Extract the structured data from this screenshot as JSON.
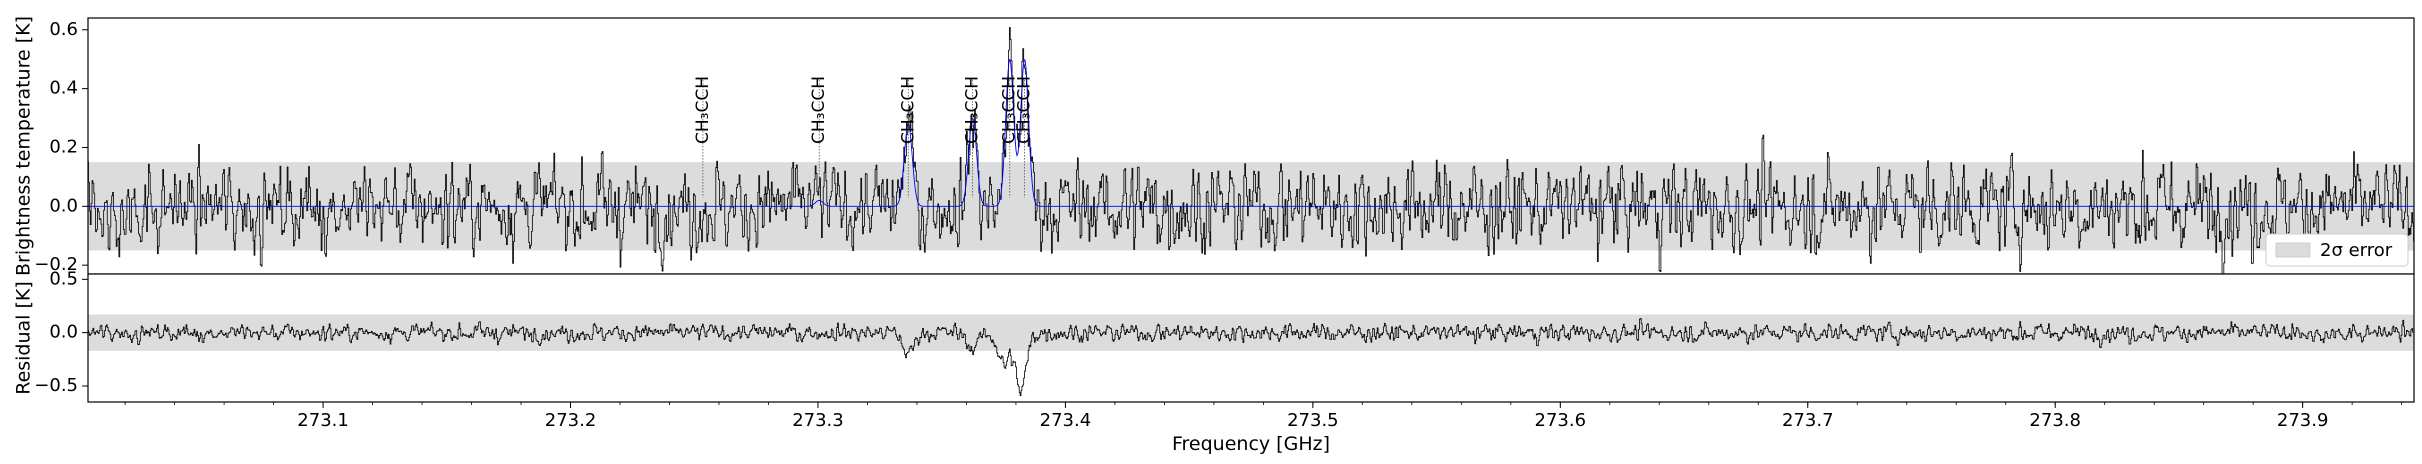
{
  "chart_data": {
    "type": "line",
    "xlabel": "Frequency [GHz]",
    "xlim": [
      273.005,
      273.945
    ],
    "xticks": [
      "273.1",
      "273.2",
      "273.3",
      "273.4",
      "273.5",
      "273.6",
      "273.7",
      "273.8",
      "273.9"
    ],
    "xtick_values": [
      273.1,
      273.2,
      273.3,
      273.4,
      273.5,
      273.6,
      273.7,
      273.8,
      273.9
    ],
    "panels": [
      {
        "id": "spectrum",
        "ylabel": "Brightness temperature [K]",
        "ylim": [
          -0.23,
          0.64
        ],
        "yticks": [
          "−0.2",
          "0.0",
          "0.2",
          "0.4",
          "0.6"
        ],
        "ytick_values": [
          -0.2,
          0.0,
          0.2,
          0.4,
          0.6
        ],
        "error_band": 0.15,
        "noise_rms": 0.075,
        "series": [
          {
            "role": "observed",
            "color": "#000000"
          },
          {
            "role": "model",
            "color": "#0000ff"
          }
        ]
      },
      {
        "id": "residual",
        "ylabel": "Residual [K]",
        "ylim": [
          -0.65,
          0.55
        ],
        "yticks": [
          "−0.5",
          "0.0",
          "0.5"
        ],
        "ytick_values": [
          -0.5,
          0.0,
          0.5
        ],
        "error_band": 0.17,
        "series": [
          {
            "role": "residual",
            "color": "#000000"
          }
        ]
      }
    ],
    "lines": [
      {
        "label": "CH₃CCH",
        "freq": 273.2535,
        "peak": 0.0
      },
      {
        "label": "CH₃CCH",
        "freq": 273.3005,
        "peak": 0.02
      },
      {
        "label": "CH₃CCH",
        "freq": 273.3365,
        "peak": 0.28
      },
      {
        "label": "CH₃CCH",
        "freq": 273.3625,
        "peak": 0.3
      },
      {
        "label": "CH₃CCH",
        "freq": 273.3775,
        "peak": 0.5
      },
      {
        "label": "CH₃CCH",
        "freq": 273.3835,
        "peak": 0.5
      }
    ],
    "residual_features": [
      {
        "freq": 273.3365,
        "depth": -0.2
      },
      {
        "freq": 273.3625,
        "depth": -0.15
      },
      {
        "freq": 273.375,
        "depth": -0.3
      },
      {
        "freq": 273.382,
        "depth": -0.55
      }
    ],
    "legend": {
      "label": "2σ error",
      "location": "lower right",
      "color": "#dcdcdc"
    },
    "grid": false
  }
}
